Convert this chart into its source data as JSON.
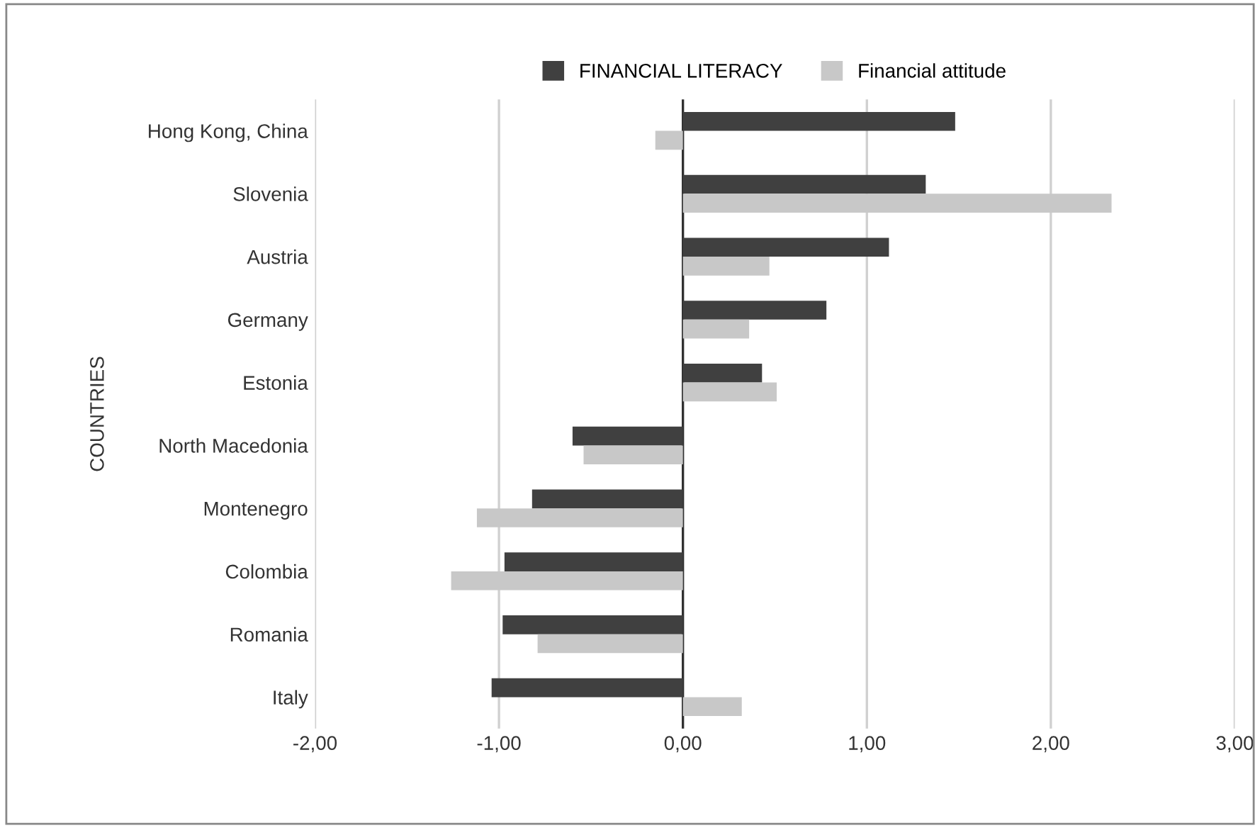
{
  "chart_data": {
    "type": "bar",
    "orientation": "horizontal",
    "ylabel": "COUNTRIES",
    "categories": [
      "Hong Kong, China",
      "Slovenia",
      "Austria",
      "Germany",
      "Estonia",
      "North Macedonia",
      "Montenegro",
      "Colombia",
      "Romania",
      "Italy"
    ],
    "series": [
      {
        "name": "FINANCIAL LITERACY",
        "color": "#404040",
        "values": [
          1.48,
          1.32,
          1.12,
          0.78,
          0.43,
          -0.6,
          -0.82,
          -0.97,
          -0.98,
          -1.04
        ]
      },
      {
        "name": "Financial attitude",
        "color": "#c8c8c8",
        "values": [
          -0.15,
          2.33,
          0.47,
          0.36,
          0.51,
          -0.54,
          -1.12,
          -1.26,
          -0.79,
          0.32
        ]
      }
    ],
    "xlim": [
      -2,
      3
    ],
    "xticks": [
      {
        "value": -2,
        "label": "-2,00"
      },
      {
        "value": -1,
        "label": "-1,00"
      },
      {
        "value": 0,
        "label": "0,00"
      },
      {
        "value": 1,
        "label": "1,00"
      },
      {
        "value": 2,
        "label": "2,00"
      },
      {
        "value": 3,
        "label": "3,00"
      }
    ],
    "grid": "x",
    "legend": "top"
  }
}
